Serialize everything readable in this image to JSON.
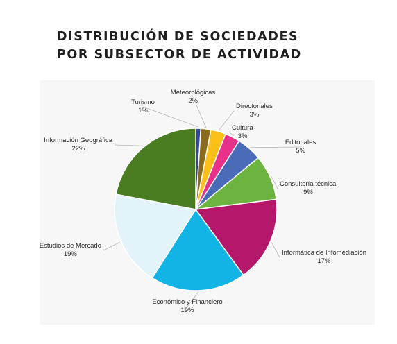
{
  "title": {
    "line1": "DISTRIBUCIÓN DE SOCIEDADES",
    "line2": "POR SUBSECTOR DE ACTIVIDAD"
  },
  "chart_data": {
    "type": "pie",
    "start_position": "top, clockwise",
    "legend": "none",
    "slices": [
      {
        "label": "Turismo",
        "value": 1,
        "value_label": "1%",
        "color": "#2e4a9e"
      },
      {
        "label": "Meteorológicas",
        "value": 2,
        "value_label": "2%",
        "color": "#8a6a1c"
      },
      {
        "label": "Directoriales",
        "value": 3,
        "value_label": "3%",
        "color": "#fbbf1a"
      },
      {
        "label": "Cultura",
        "value": 3,
        "value_label": "3%",
        "color": "#e8318a"
      },
      {
        "label": "Editoriales",
        "value": 5,
        "value_label": "5%",
        "color": "#4a6cb8"
      },
      {
        "label": "Consultoría técnica",
        "value": 9,
        "value_label": "9%",
        "color": "#6db33f"
      },
      {
        "label": "Informática de Infomediación",
        "value": 17,
        "value_label": "17%",
        "color": "#b5176a"
      },
      {
        "label": "Económico y Financiero",
        "value": 19,
        "value_label": "19%",
        "color": "#12b4e6"
      },
      {
        "label": "Estudios de Mercado",
        "value": 19,
        "value_label": "19%",
        "color": "#e2f4fa"
      },
      {
        "label": "Información Geográfica",
        "value": 22,
        "value_label": "22%",
        "color": "#4a7c22"
      }
    ]
  }
}
